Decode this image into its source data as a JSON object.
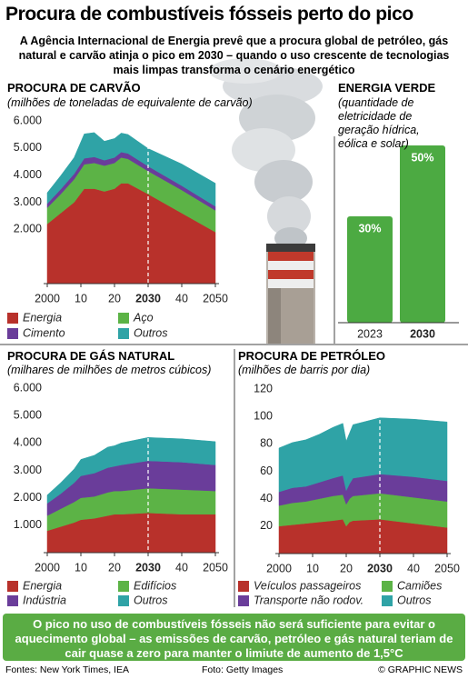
{
  "title": "Procura de combustíveis fósseis perto do pico",
  "subtitle": "A Agência Internacional de Energia prevê que a procura global de petróleo, gás natural e carvão atinja o pico em 2030 – quando o uso crescente de tecnologias mais limpas transforma o cenário energético",
  "chart_data": [
    {
      "type": "area",
      "stacked": true,
      "title": "PROCURA DE CARVÃO",
      "subtitle": "(milhões de toneladas de equivalente de carvão)",
      "x": [
        2000,
        2004,
        2008,
        2011,
        2014,
        2017,
        2020,
        2022,
        2024,
        2030,
        2040,
        2050
      ],
      "series": [
        {
          "name": "Energia",
          "color": "#b8312b",
          "values": [
            2200,
            2600,
            3000,
            3500,
            3500,
            3400,
            3500,
            3700,
            3700,
            3300,
            2600,
            1900
          ]
        },
        {
          "name": "Aço",
          "color": "#5cb346",
          "values": [
            600,
            700,
            850,
            900,
            950,
            950,
            950,
            950,
            900,
            850,
            850,
            800
          ]
        },
        {
          "name": "Cimento",
          "color": "#6a3d9a",
          "values": [
            150,
            180,
            200,
            220,
            220,
            200,
            200,
            200,
            200,
            180,
            160,
            150
          ]
        },
        {
          "name": "Outros",
          "color": "#2fa3a6",
          "values": [
            400,
            500,
            600,
            900,
            900,
            700,
            700,
            700,
            700,
            650,
            800,
            850
          ]
        }
      ],
      "xlim": [
        2000,
        2050
      ],
      "xticks": [
        2000,
        {
          "value": 2010,
          "label": "10"
        },
        {
          "value": 2020,
          "label": "20"
        },
        2030,
        {
          "value": 2040,
          "label": "40"
        },
        2050
      ],
      "ylim": [
        0,
        6000
      ],
      "yticks": [
        {
          "value": 2000,
          "label": "2.000"
        },
        {
          "value": 3000,
          "label": "3.000"
        },
        {
          "value": 4000,
          "label": "4.000"
        },
        {
          "value": 5000,
          "label": "5.000"
        },
        {
          "value": 6000,
          "label": "6.000"
        }
      ]
    },
    {
      "type": "bar",
      "title": "ENERGIA VERDE",
      "subtitle": "(quantidade de eletricidade de geração hídrica, eólica e solar)",
      "categories": [
        "2023",
        "2030"
      ],
      "values": [
        30,
        50
      ],
      "value_labels": [
        "30%",
        "50%"
      ],
      "color": "#4caa42"
    },
    {
      "type": "area",
      "stacked": true,
      "title": "PROCURA DE GÁS NATURAL",
      "subtitle": "(milhares de milhões de metros cúbicos)",
      "x": [
        2000,
        2004,
        2008,
        2010,
        2014,
        2018,
        2020,
        2022,
        2030,
        2040,
        2050
      ],
      "series": [
        {
          "name": "Energia",
          "color": "#b8312b",
          "values": [
            800,
            950,
            1100,
            1200,
            1250,
            1350,
            1400,
            1400,
            1450,
            1400,
            1400
          ]
        },
        {
          "name": "Edifícios",
          "color": "#5cb346",
          "values": [
            550,
            650,
            750,
            800,
            800,
            850,
            850,
            850,
            900,
            900,
            850
          ]
        },
        {
          "name": "Indústria",
          "color": "#6a3d9a",
          "values": [
            450,
            550,
            700,
            800,
            850,
            900,
            900,
            950,
            1000,
            1000,
            950
          ]
        },
        {
          "name": "Outros",
          "color": "#2fa3a6",
          "values": [
            300,
            400,
            500,
            600,
            650,
            750,
            750,
            800,
            850,
            850,
            850
          ]
        }
      ],
      "xlim": [
        2000,
        2050
      ],
      "xticks": [
        2000,
        {
          "value": 2010,
          "label": "10"
        },
        {
          "value": 2020,
          "label": "20"
        },
        2030,
        {
          "value": 2040,
          "label": "40"
        },
        2050
      ],
      "ylim": [
        0,
        6000
      ],
      "yticks": [
        {
          "value": 1000,
          "label": "1.000"
        },
        {
          "value": 2000,
          "label": "2.000"
        },
        {
          "value": 3000,
          "label": "3.000"
        },
        {
          "value": 4000,
          "label": "4.000"
        },
        {
          "value": 5000,
          "label": "5.000"
        },
        {
          "value": 6000,
          "label": "6.000"
        }
      ]
    },
    {
      "type": "area",
      "stacked": true,
      "title": "PROCURA DE PETRÓLEO",
      "subtitle": "(milhões de barris por dia)",
      "x": [
        2000,
        2004,
        2008,
        2012,
        2016,
        2019,
        2020,
        2021,
        2022,
        2030,
        2040,
        2050
      ],
      "series": [
        {
          "name": "Veículos passageiros",
          "color": "#b8312b",
          "values": [
            20,
            21,
            22,
            23,
            24,
            25,
            20,
            23,
            24,
            25,
            22,
            19
          ]
        },
        {
          "name": "Camiões",
          "color": "#5cb346",
          "values": [
            15,
            16,
            16,
            17,
            18,
            18,
            16,
            17,
            18,
            19,
            19,
            19
          ]
        },
        {
          "name": "Transporte não rodov.",
          "color": "#6a3d9a",
          "values": [
            10,
            11,
            11,
            12,
            13,
            14,
            10,
            11,
            13,
            14,
            15,
            15
          ]
        },
        {
          "name": "Outros",
          "color": "#2fa3a6",
          "values": [
            32,
            33,
            34,
            35,
            37,
            38,
            36,
            37,
            39,
            41,
            42,
            43
          ]
        }
      ],
      "xlim": [
        2000,
        2050
      ],
      "xticks": [
        2000,
        {
          "value": 2010,
          "label": "10"
        },
        {
          "value": 2020,
          "label": "20"
        },
        2030,
        {
          "value": 2040,
          "label": "40"
        },
        2050
      ],
      "ylim": [
        0,
        120
      ],
      "yticks": [
        20,
        40,
        60,
        80,
        100,
        120
      ]
    }
  ],
  "note": "O pico no uso de combustíveis fósseis não será suficiente para evitar o aquecimento global – as emissões de carvão, petróleo e gás natural teriam de cair quase a zero para manter o limiute de aumento de 1,5°C",
  "sources": "Fontes: New York Times, IEA",
  "photo_credit": "Foto: Getty Images",
  "copyright": "© GRAPHIC NEWS"
}
